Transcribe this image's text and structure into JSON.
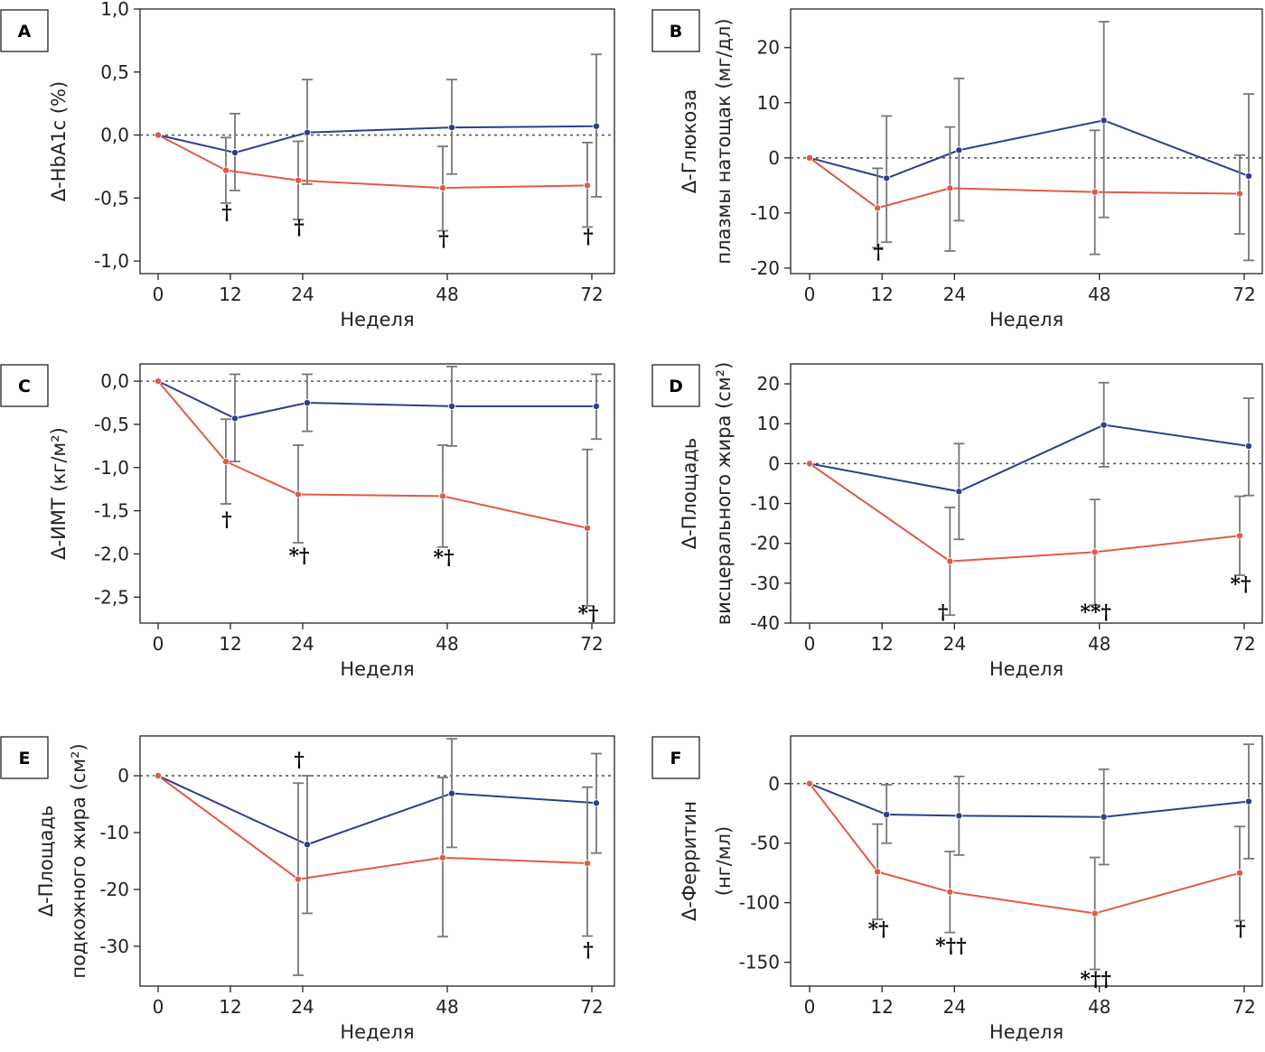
{
  "chart_data": [
    {
      "type": "line",
      "panel_label": "A",
      "xlabel": "Неделя",
      "ylabel": "Δ-HbA1c (%)",
      "x": [
        0,
        12,
        24,
        48,
        72
      ],
      "ylim": [
        -1.1,
        1.0
      ],
      "yticks": [
        1.0,
        0.5,
        0.0,
        -0.5,
        -1.0
      ],
      "ytick_labels": [
        "1,0",
        "0,5",
        "0,0",
        "-0,5",
        "-1,0"
      ],
      "xticks": [
        0,
        12,
        24,
        48,
        72
      ],
      "xtick_labels": [
        "0",
        "12",
        "24",
        "48",
        "72"
      ],
      "reference_line": 0,
      "series": [
        {
          "color": "#2e3e8c",
          "values": [
            0,
            -0.14,
            0.02,
            0.06,
            0.07
          ],
          "err_low": [
            0,
            -0.44,
            -0.39,
            -0.31,
            -0.49
          ],
          "err_high": [
            0,
            0.17,
            0.44,
            0.44,
            0.64
          ]
        },
        {
          "color": "#e05a47",
          "values": [
            0,
            -0.28,
            -0.36,
            -0.42,
            -0.4
          ],
          "err_low": [
            0,
            -0.54,
            -0.67,
            -0.76,
            -0.73
          ],
          "err_high": [
            0,
            -0.02,
            -0.05,
            -0.09,
            -0.06
          ]
        }
      ],
      "annotations": [
        {
          "text": "†",
          "x": 12,
          "y": -0.67
        },
        {
          "text": "†",
          "x": 24,
          "y": -0.79
        },
        {
          "text": "†",
          "x": 48,
          "y": -0.88
        },
        {
          "text": "†",
          "x": 72,
          "y": -0.86
        }
      ]
    },
    {
      "type": "line",
      "panel_label": "B",
      "xlabel": "Неделя",
      "ylabel": "Δ-Глюкоза плазмы натощак (мг/дл)",
      "ylabel_lines": [
        "Δ-Глюкоза",
        "плазмы натощак (мг/дл)"
      ],
      "x": [
        0,
        12,
        24,
        48,
        72
      ],
      "ylim": [
        -21,
        27
      ],
      "yticks": [
        20,
        10,
        0,
        -10,
        -20
      ],
      "ytick_labels": [
        "20",
        "10",
        "0",
        "-10",
        "-20"
      ],
      "xticks": [
        0,
        12,
        24,
        48,
        72
      ],
      "xtick_labels": [
        "0",
        "12",
        "24",
        "48",
        "72"
      ],
      "reference_line": 0,
      "series": [
        {
          "color": "#2e3e8c",
          "values": [
            0,
            -3.7,
            1.4,
            6.8,
            -3.3
          ],
          "err_low": [
            0,
            -15.3,
            -11.4,
            -10.8,
            -18.6
          ],
          "err_high": [
            0,
            7.6,
            14.4,
            24.7,
            11.6
          ]
        },
        {
          "color": "#e05a47",
          "values": [
            0,
            -9.1,
            -5.5,
            -6.2,
            -6.5
          ],
          "err_low": [
            0,
            -16.3,
            -16.9,
            -17.5,
            -13.8
          ],
          "err_high": [
            0,
            -1.9,
            5.6,
            5.0,
            0.5
          ]
        }
      ],
      "annotations": [
        {
          "text": "†",
          "x": 12,
          "y": -18.3
        }
      ]
    },
    {
      "type": "line",
      "panel_label": "C",
      "xlabel": "Неделя",
      "ylabel": "Δ-ИМТ (кг/м²)",
      "x": [
        0,
        12,
        24,
        48,
        72
      ],
      "ylim": [
        -2.8,
        0.2
      ],
      "yticks": [
        0.0,
        -0.5,
        -1.0,
        -1.5,
        -2.0,
        -2.5
      ],
      "ytick_labels": [
        "0,0",
        "-0,5",
        "-1,0",
        "-1,5",
        "-2,0",
        "-2,5"
      ],
      "xticks": [
        0,
        12,
        24,
        48,
        72
      ],
      "xtick_labels": [
        "0",
        "12",
        "24",
        "48",
        "72"
      ],
      "reference_line": 0,
      "series": [
        {
          "color": "#2e3e8c",
          "values": [
            0,
            -0.43,
            -0.25,
            -0.29,
            -0.29
          ],
          "err_low": [
            0,
            -0.93,
            -0.58,
            -0.75,
            -0.67
          ],
          "err_high": [
            0,
            0.08,
            0.08,
            0.17,
            0.08
          ]
        },
        {
          "color": "#e05a47",
          "values": [
            0,
            -0.93,
            -1.31,
            -1.33,
            -1.7
          ],
          "err_low": [
            0,
            -1.42,
            -1.87,
            -1.92,
            -2.6
          ],
          "err_high": [
            0,
            -0.44,
            -0.74,
            -0.74,
            -0.79
          ]
        }
      ],
      "annotations": [
        {
          "text": "†",
          "x": 12,
          "y": -1.68
        },
        {
          "text": "*†",
          "x": 24,
          "y": -2.1
        },
        {
          "text": "*†",
          "x": 48,
          "y": -2.12
        },
        {
          "text": "*†",
          "x": 72,
          "y": -2.77
        }
      ]
    },
    {
      "type": "line",
      "panel_label": "D",
      "xlabel": "Неделя",
      "ylabel": "Δ-Площадь висцерального жира (см²)",
      "ylabel_lines": [
        "Δ-Площадь",
        "висцерального жира (см²)"
      ],
      "x": [
        0,
        12,
        24,
        48,
        72
      ],
      "ylim": [
        -40,
        25
      ],
      "yticks": [
        20,
        10,
        0,
        -10,
        -20,
        -30,
        -40
      ],
      "ytick_labels": [
        "20",
        "10",
        "0",
        "-10",
        "-20",
        "-30",
        "-40"
      ],
      "xticks": [
        0,
        12,
        24,
        48,
        72
      ],
      "xtick_labels": [
        "0",
        "12",
        "24",
        "48",
        "72"
      ],
      "reference_line": 0,
      "series": [
        {
          "color": "#2e3e8c",
          "values": [
            0,
            null,
            -7.0,
            9.7,
            4.4
          ],
          "err_low": [
            0,
            null,
            -19.0,
            -0.8,
            -8.0
          ],
          "err_high": [
            0,
            null,
            5.0,
            20.3,
            16.4
          ]
        },
        {
          "color": "#e05a47",
          "values": [
            0,
            null,
            -24.5,
            -22.2,
            -18.1
          ],
          "err_low": [
            0,
            null,
            -38.0,
            -35.5,
            -28.0
          ],
          "err_high": [
            0,
            null,
            -11.0,
            -9.0,
            -8.2
          ]
        }
      ],
      "annotations": [
        {
          "text": "†",
          "x": 22.7,
          "y": -39.0
        },
        {
          "text": "**†",
          "x": 48,
          "y": -39.0
        },
        {
          "text": "*†",
          "x": 72,
          "y": -32.0
        }
      ]
    },
    {
      "type": "line",
      "panel_label": "E",
      "xlabel": "Неделя",
      "ylabel": "Δ-Площадь подкожного жира (см²)",
      "ylabel_lines": [
        "Δ-Площадь",
        "подкожного жира (см²)"
      ],
      "x": [
        0,
        12,
        24,
        48,
        72
      ],
      "ylim": [
        -37,
        7
      ],
      "yticks": [
        0,
        -10,
        -20,
        -30
      ],
      "ytick_labels": [
        "0",
        "-10",
        "-20",
        "-30"
      ],
      "xticks": [
        0,
        12,
        24,
        48,
        72
      ],
      "xtick_labels": [
        "0",
        "12",
        "24",
        "48",
        "72"
      ],
      "reference_line": 0,
      "series": [
        {
          "color": "#2e3e8c",
          "values": [
            0,
            null,
            -12.1,
            -3.1,
            -4.8
          ],
          "err_low": [
            0,
            null,
            -24.2,
            -12.6,
            -13.6
          ],
          "err_high": [
            0,
            null,
            0.0,
            6.5,
            3.9
          ]
        },
        {
          "color": "#e05a47",
          "values": [
            0,
            null,
            -18.2,
            -14.4,
            -15.4
          ],
          "err_low": [
            0,
            null,
            -35.1,
            -28.3,
            -28.2
          ],
          "err_high": [
            0,
            null,
            -1.3,
            -0.3,
            -2.0
          ]
        }
      ],
      "annotations": [
        {
          "text": "†",
          "x": 24,
          "y": 1.6
        },
        {
          "text": "†",
          "x": 72,
          "y": -31.8
        }
      ]
    },
    {
      "type": "line",
      "panel_label": "F",
      "xlabel": "Неделя",
      "ylabel": "Δ-Ферритин (нг/мл)",
      "ylabel_lines": [
        "Δ-Ферритин",
        "(нг/мл)"
      ],
      "x": [
        0,
        12,
        24,
        48,
        72
      ],
      "ylim": [
        -170,
        40
      ],
      "yticks": [
        0,
        -50,
        -100,
        -150
      ],
      "ytick_labels": [
        "0",
        "-50",
        "-100",
        "-150"
      ],
      "xticks": [
        0,
        12,
        24,
        48,
        72
      ],
      "xtick_labels": [
        "0",
        "12",
        "24",
        "48",
        "72"
      ],
      "reference_line": 0,
      "series": [
        {
          "color": "#2e3e8c",
          "values": [
            0,
            -26,
            -27,
            -28,
            -15
          ],
          "err_low": [
            0,
            -50,
            -60,
            -68,
            -63
          ],
          "err_high": [
            0,
            -1,
            6,
            12,
            33
          ]
        },
        {
          "color": "#e05a47",
          "values": [
            0,
            -74,
            -91,
            -109,
            -75
          ],
          "err_low": [
            0,
            -114,
            -125,
            -156,
            -115
          ],
          "err_high": [
            0,
            -34,
            -57,
            -62,
            -36
          ]
        }
      ],
      "annotations": [
        {
          "text": "*†",
          "x": 12,
          "y": -128
        },
        {
          "text": "*††",
          "x": 24,
          "y": -142
        },
        {
          "text": "*††",
          "x": 48,
          "y": -170
        },
        {
          "text": "†",
          "x": 72,
          "y": -128
        }
      ]
    }
  ]
}
